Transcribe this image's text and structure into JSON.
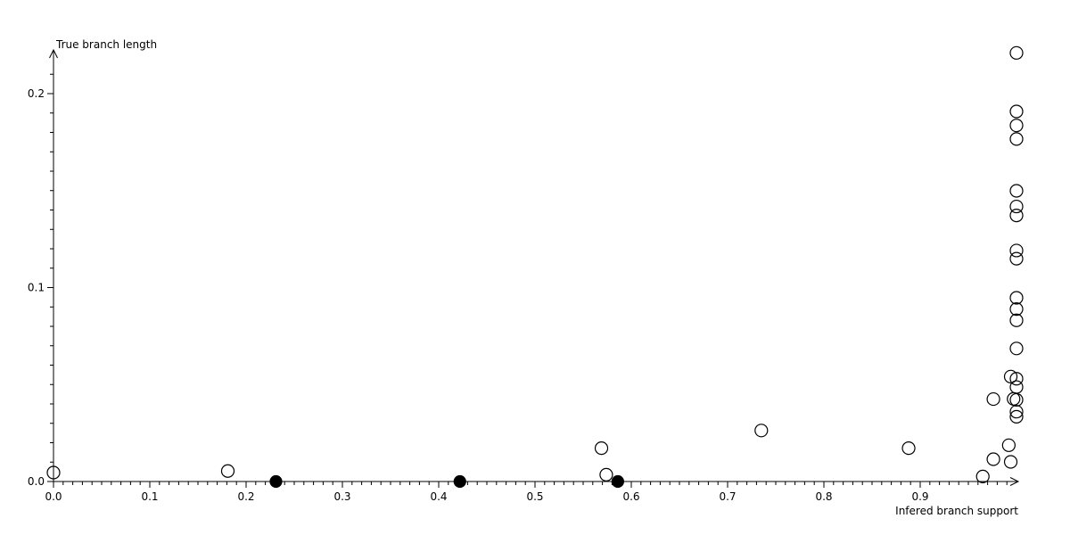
{
  "chart_data": {
    "type": "scatter",
    "title": "",
    "xlabel": "Infered branch support",
    "ylabel": "True branch length",
    "xlim": [
      0,
      1.0
    ],
    "ylim": [
      0,
      0.22
    ],
    "grid": false,
    "legend": false,
    "x_major_ticks": [
      0.0,
      0.1,
      0.2,
      0.3,
      0.4,
      0.5,
      0.6,
      0.7,
      0.8,
      0.9
    ],
    "x_tick_labels": [
      "0.0",
      "0.1",
      "0.2",
      "0.3",
      "0.4",
      "0.5",
      "0.6",
      "0.7",
      "0.8",
      "0.9"
    ],
    "x_minor_step": 0.01,
    "y_major_ticks": [
      0.0,
      0.1,
      0.2
    ],
    "y_tick_labels": [
      "0.0",
      "0.1",
      "0.2"
    ],
    "y_minor_step": 0.01,
    "series": [
      {
        "name": "open-circles",
        "marker": "open-circle",
        "points": [
          [
            0.0,
            0.0046
          ],
          [
            0.181,
            0.0054
          ],
          [
            0.569,
            0.0172
          ],
          [
            0.574,
            0.0035
          ],
          [
            0.735,
            0.0263
          ],
          [
            0.888,
            0.0172
          ],
          [
            0.965,
            0.0026
          ],
          [
            0.976,
            0.0115
          ],
          [
            0.992,
            0.0187
          ],
          [
            0.994,
            0.0101
          ],
          [
            0.976,
            0.0425
          ],
          [
            1.0,
            0.221
          ],
          [
            1.0,
            0.1908
          ],
          [
            1.0,
            0.1836
          ],
          [
            1.0,
            0.1766
          ],
          [
            1.0,
            0.1499
          ],
          [
            1.0,
            0.1418
          ],
          [
            1.0,
            0.1372
          ],
          [
            1.0,
            0.1191
          ],
          [
            1.0,
            0.1149
          ],
          [
            1.0,
            0.0947
          ],
          [
            1.0,
            0.0889
          ],
          [
            1.0,
            0.0831
          ],
          [
            1.0,
            0.0686
          ],
          [
            0.994,
            0.0541
          ],
          [
            1.0,
            0.053
          ],
          [
            1.0,
            0.0487
          ],
          [
            0.997,
            0.0426
          ],
          [
            1.0,
            0.0421
          ],
          [
            1.0,
            0.036
          ],
          [
            1.0,
            0.0334
          ]
        ]
      },
      {
        "name": "filled-circles",
        "marker": "filled-circle",
        "points": [
          [
            0.231,
            0.0
          ],
          [
            0.422,
            0.0
          ],
          [
            0.586,
            0.0
          ]
        ]
      }
    ]
  },
  "colors": {
    "background": "#ffffff",
    "axis": "#000000",
    "text": "#000000",
    "marker_stroke": "#000000",
    "filled_marker": "#000000"
  }
}
